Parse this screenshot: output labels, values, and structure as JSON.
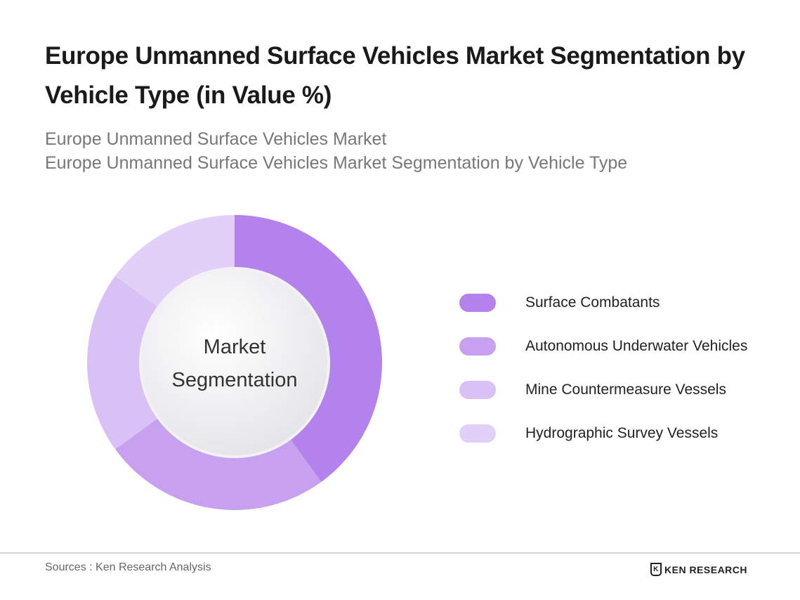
{
  "title": "Europe Unmanned Surface Vehicles Market Segmentation by Vehicle Type (in Value %)",
  "subtitle_lines": [
    "Europe Unmanned Surface Vehicles Market",
    "Europe Unmanned Surface Vehicles Market Segmentation by Vehicle Type"
  ],
  "chart_data": {
    "type": "pie",
    "variant": "donut",
    "center_label": [
      "Market",
      "Segmentation"
    ],
    "categories": [
      "Surface Combatants",
      "Autonomous Underwater Vehicles",
      "Mine Countermeasure Vessels",
      "Hydrographic Survey Vessels"
    ],
    "values": [
      40,
      25,
      20,
      15
    ],
    "unit": "%",
    "colors": [
      "#b382ec",
      "#c7a0f0",
      "#d9c1f6",
      "#e2d0f8"
    ],
    "legend_placement": "right"
  },
  "footer": {
    "source": "Sources : Ken Research Analysis",
    "logo_text": "KEN RESEARCH"
  }
}
